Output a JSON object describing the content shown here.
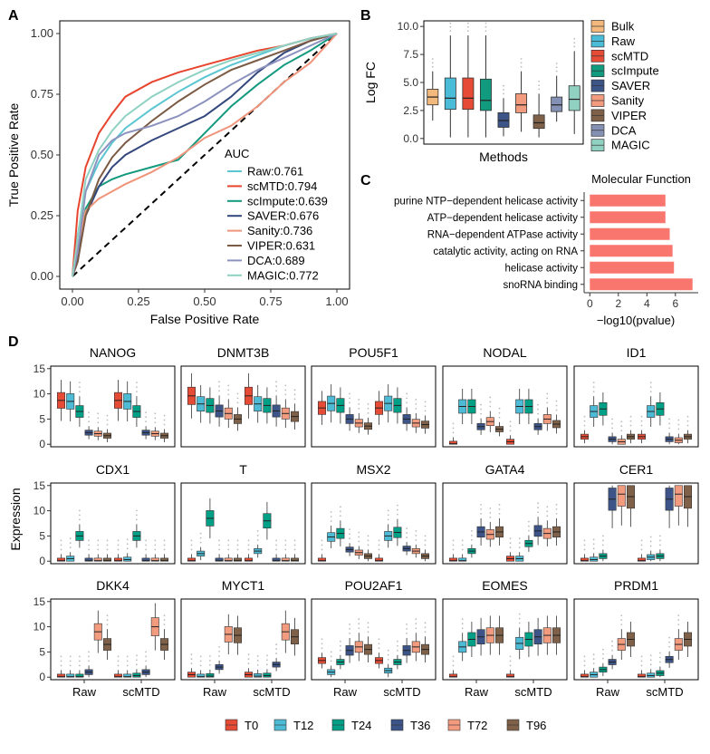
{
  "colors": {
    "roc": {
      "Raw": "#5BC6D1",
      "scMTD": "#E8452E",
      "scImpute": "#139A7E",
      "SAVER": "#34487E",
      "Sanity": "#F0957C",
      "VIPER": "#7B5B44",
      "DCA": "#8C92BE",
      "MAGIC": "#8FD1C2"
    },
    "box": {
      "Bulk": "#F2B87C",
      "Raw": "#4BBCD8",
      "scMTD": "#E64B35",
      "scImpute": "#109A7E",
      "SAVER": "#3C5488",
      "Sanity": "#F39B7F",
      "VIPER": "#7E6148",
      "DCA": "#8491B4",
      "MAGIC": "#91D1C2"
    },
    "time": {
      "T0": "#E64B35",
      "T12": "#4DBBD5",
      "T24": "#00A087",
      "T36": "#3C5488",
      "T72": "#F39B7F",
      "T96": "#7E6148"
    },
    "bar": "#F8766D"
  },
  "chart_data": [
    {
      "panel": "A",
      "type": "line",
      "xlabel": "False Positive Rate",
      "ylabel": "True Positive Rate",
      "xlim": [
        0,
        1
      ],
      "ylim": [
        0,
        1
      ],
      "ticks": [
        "0.00",
        "0.25",
        "0.50",
        "0.75",
        "1.00"
      ],
      "legend_title": "AUC",
      "series": [
        {
          "name": "Raw",
          "label": "Raw:0.761",
          "x": [
            0,
            0.02,
            0.05,
            0.1,
            0.15,
            0.2,
            0.3,
            0.4,
            0.5,
            0.6,
            0.7,
            0.8,
            0.9,
            1
          ],
          "y": [
            0,
            0.17,
            0.35,
            0.47,
            0.55,
            0.61,
            0.69,
            0.76,
            0.82,
            0.87,
            0.91,
            0.95,
            0.98,
            1
          ]
        },
        {
          "name": "scMTD",
          "label": "scMTD:0.794",
          "x": [
            0,
            0.02,
            0.05,
            0.1,
            0.15,
            0.2,
            0.3,
            0.4,
            0.5,
            0.6,
            0.7,
            0.8,
            0.9,
            1
          ],
          "y": [
            0,
            0.27,
            0.45,
            0.59,
            0.67,
            0.74,
            0.8,
            0.84,
            0.87,
            0.9,
            0.93,
            0.95,
            0.98,
            1
          ]
        },
        {
          "name": "scImpute",
          "label": "scImpute:0.639",
          "x": [
            0,
            0.02,
            0.05,
            0.1,
            0.15,
            0.2,
            0.3,
            0.4,
            0.5,
            0.6,
            0.7,
            0.8,
            0.9,
            1
          ],
          "y": [
            0,
            0.1,
            0.28,
            0.37,
            0.4,
            0.42,
            0.45,
            0.48,
            0.59,
            0.7,
            0.79,
            0.87,
            0.93,
            1
          ]
        },
        {
          "name": "SAVER",
          "label": "SAVER:0.676",
          "x": [
            0,
            0.02,
            0.05,
            0.1,
            0.15,
            0.2,
            0.3,
            0.4,
            0.5,
            0.6,
            0.7,
            0.8,
            0.9,
            1
          ],
          "y": [
            0,
            0.08,
            0.25,
            0.37,
            0.45,
            0.5,
            0.56,
            0.61,
            0.66,
            0.74,
            0.84,
            0.92,
            0.97,
            1
          ]
        },
        {
          "name": "Sanity",
          "label": "Sanity:0.736",
          "x": [
            0,
            0.02,
            0.05,
            0.1,
            0.15,
            0.2,
            0.3,
            0.4,
            0.5,
            0.6,
            0.7,
            0.8,
            0.9,
            1
          ],
          "y": [
            0,
            0.12,
            0.27,
            0.32,
            0.35,
            0.38,
            0.43,
            0.49,
            0.57,
            0.62,
            0.7,
            0.8,
            0.88,
            1
          ]
        },
        {
          "name": "VIPER",
          "label": "VIPER:0.631",
          "x": [
            0,
            0.02,
            0.05,
            0.1,
            0.15,
            0.2,
            0.3,
            0.4,
            0.5,
            0.6,
            0.7,
            0.8,
            0.9,
            1
          ],
          "y": [
            0,
            0.06,
            0.25,
            0.4,
            0.49,
            0.55,
            0.64,
            0.72,
            0.79,
            0.85,
            0.89,
            0.93,
            0.97,
            1
          ]
        },
        {
          "name": "DCA",
          "label": "DCA:0.689",
          "x": [
            0,
            0.02,
            0.05,
            0.1,
            0.15,
            0.2,
            0.3,
            0.4,
            0.5,
            0.6,
            0.7,
            0.8,
            0.9,
            1
          ],
          "y": [
            0,
            0.1,
            0.35,
            0.5,
            0.56,
            0.59,
            0.62,
            0.66,
            0.72,
            0.79,
            0.85,
            0.9,
            0.95,
            1
          ]
        },
        {
          "name": "MAGIC",
          "label": "MAGIC:0.772",
          "x": [
            0,
            0.02,
            0.05,
            0.1,
            0.15,
            0.2,
            0.3,
            0.4,
            0.5,
            0.6,
            0.7,
            0.8,
            0.9,
            1
          ],
          "y": [
            0,
            0.16,
            0.4,
            0.52,
            0.6,
            0.66,
            0.74,
            0.8,
            0.85,
            0.89,
            0.92,
            0.95,
            0.98,
            1
          ]
        }
      ]
    },
    {
      "panel": "B",
      "type": "box",
      "xlabel": "Methods",
      "ylabel": "Log FC",
      "ylim": [
        -0.5,
        10.5
      ],
      "yticks": [
        "0.0",
        "2.5",
        "5.0",
        "7.5",
        "10.0"
      ],
      "groups": [
        {
          "name": "Bulk",
          "stats": [
            1.6,
            3.0,
            3.7,
            4.4,
            6.0
          ]
        },
        {
          "name": "Raw",
          "stats": [
            0.1,
            2.6,
            3.6,
            5.4,
            9.2
          ]
        },
        {
          "name": "scMTD",
          "stats": [
            0.1,
            2.6,
            3.6,
            5.4,
            9.2
          ]
        },
        {
          "name": "scImpute",
          "stats": [
            0.1,
            2.5,
            3.4,
            5.3,
            9.2
          ]
        },
        {
          "name": "SAVER",
          "stats": [
            0.2,
            1.0,
            1.6,
            2.3,
            3.6
          ]
        },
        {
          "name": "Sanity",
          "stats": [
            0.6,
            2.3,
            3.0,
            4.0,
            6.0
          ]
        },
        {
          "name": "VIPER",
          "stats": [
            0.1,
            0.9,
            1.4,
            2.1,
            4.0
          ]
        },
        {
          "name": "DCA",
          "stats": [
            1.5,
            2.4,
            3.0,
            3.7,
            5.6
          ]
        },
        {
          "name": "MAGIC",
          "stats": [
            0.4,
            2.5,
            3.5,
            4.7,
            7.8
          ]
        }
      ]
    },
    {
      "panel": "C",
      "type": "bar",
      "title": "Molecular Function",
      "xlabel": "−log10(pvalue)",
      "xlim": [
        -0.4,
        7.6
      ],
      "xticks": [
        "0",
        "2",
        "4",
        "6"
      ],
      "categories": [
        "purine NTP−dependent helicase activity",
        "ATP−dependent helicase activity",
        "RNA−dependent ATPase activity",
        "catalytic activity, acting on RNA",
        "helicase activity",
        "snoRNA binding"
      ],
      "values": [
        5.3,
        5.3,
        5.6,
        5.8,
        5.9,
        7.2
      ]
    },
    {
      "panel": "D",
      "type": "box",
      "ylabel": "Expression",
      "ylim": [
        -0.5,
        15.5
      ],
      "yticks": [
        "0",
        "5",
        "10",
        "15"
      ],
      "xcategories": [
        "Raw",
        "scMTD"
      ],
      "timepoints": [
        "T0",
        "T12",
        "T24",
        "T36",
        "T72",
        "T96"
      ],
      "genes": [
        {
          "name": "NANOG",
          "raw": [
            8.7,
            8.5,
            6.5,
            2.3,
            2.1,
            1.7
          ],
          "scmtd": [
            8.7,
            8.5,
            6.5,
            2.3,
            2.1,
            1.7
          ]
        },
        {
          "name": "DNMT3B",
          "raw": [
            9.6,
            8.0,
            7.7,
            6.6,
            6.1,
            5.0
          ],
          "scmtd": [
            9.6,
            8.0,
            7.7,
            6.6,
            6.1,
            5.5
          ]
        },
        {
          "name": "POU5F1",
          "raw": [
            7.2,
            8.1,
            7.7,
            5.0,
            4.2,
            3.6
          ],
          "scmtd": [
            7.2,
            8.1,
            7.7,
            5.0,
            4.2,
            3.9
          ]
        },
        {
          "name": "NODAL",
          "raw": [
            0.1,
            7.5,
            7.5,
            3.5,
            4.5,
            3.0
          ],
          "scmtd": [
            0.5,
            7.5,
            7.5,
            3.5,
            5.0,
            4.0
          ]
        },
        {
          "name": "ID1",
          "raw": [
            1.5,
            6.5,
            7.0,
            1.0,
            0.5,
            1.5
          ],
          "scmtd": [
            1.5,
            6.5,
            7.0,
            1.0,
            0.8,
            1.5
          ]
        },
        {
          "name": "CDX1",
          "raw": [
            0.1,
            0.5,
            5.0,
            0.1,
            0.1,
            0.1
          ],
          "scmtd": [
            0.1,
            0.3,
            5.0,
            0.1,
            0.1,
            0.1
          ]
        },
        {
          "name": "T",
          "raw": [
            0.1,
            1.5,
            8.5,
            0.1,
            0.1,
            0.1
          ],
          "scmtd": [
            0.1,
            2.0,
            8.0,
            0.1,
            0.1,
            0.1
          ]
        },
        {
          "name": "MSX2",
          "raw": [
            0.1,
            4.8,
            5.5,
            2.3,
            1.7,
            1.0
          ],
          "scmtd": [
            0.1,
            5.0,
            5.7,
            2.5,
            2.0,
            1.0
          ]
        },
        {
          "name": "GATA4",
          "raw": [
            0.1,
            0.1,
            2.0,
            5.8,
            5.3,
            5.8
          ],
          "scmtd": [
            0.5,
            0.5,
            3.5,
            6.0,
            5.5,
            5.8
          ]
        },
        {
          "name": "CER1",
          "raw": [
            0.1,
            0.3,
            1.0,
            12.3,
            13.3,
            12.8
          ],
          "scmtd": [
            0.1,
            0.8,
            1.0,
            12.3,
            13.3,
            12.8
          ]
        },
        {
          "name": "DKK4",
          "raw": [
            0.1,
            0.1,
            0.1,
            1.0,
            9.0,
            6.5
          ],
          "scmtd": [
            0.1,
            0.1,
            0.3,
            1.0,
            10.0,
            6.5
          ]
        },
        {
          "name": "MYCT1",
          "raw": [
            0.5,
            0.1,
            0.2,
            2.0,
            8.5,
            8.3
          ],
          "scmtd": [
            0.5,
            0.2,
            0.3,
            2.5,
            9.0,
            8.0
          ]
        },
        {
          "name": "POU2AF1",
          "raw": [
            3.3,
            1.0,
            3.0,
            5.3,
            6.0,
            5.5
          ],
          "scmtd": [
            3.3,
            1.3,
            3.0,
            5.3,
            6.0,
            5.5
          ]
        },
        {
          "name": "EOMES",
          "raw": [
            0.1,
            6.0,
            7.5,
            8.0,
            8.3,
            8.3
          ],
          "scmtd": [
            0.1,
            6.7,
            7.5,
            8.0,
            8.3,
            8.3
          ]
        },
        {
          "name": "PRDM1",
          "raw": [
            0.1,
            0.5,
            1.5,
            3.0,
            6.5,
            7.5
          ],
          "scmtd": [
            0.1,
            0.3,
            0.8,
            3.5,
            6.5,
            7.5
          ]
        }
      ]
    }
  ]
}
